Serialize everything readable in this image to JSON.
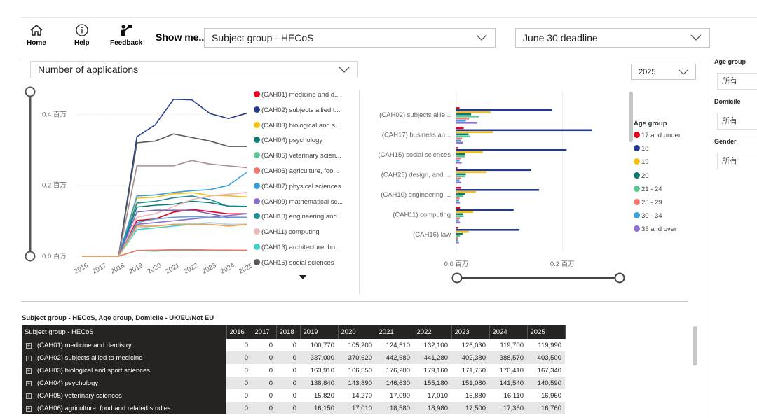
{
  "nav": {
    "home": "Home",
    "help": "Help",
    "feedback": "Feedback",
    "show_me": "Show me...",
    "subject_select": "Subject group - HECoS",
    "deadline_select": "June 30 deadline"
  },
  "measure_select": "Number of applications",
  "year_select": "2025",
  "filters": [
    {
      "title": "Age group",
      "value": "所有"
    },
    {
      "title": "Domicile",
      "value": "所有"
    },
    {
      "title": "Gender",
      "value": "所有"
    }
  ],
  "chart_data": [
    {
      "type": "line",
      "y_tick_labels": [
        "0.0 百万",
        "0.2 百万",
        "0.4 百万"
      ],
      "ylim": [
        0,
        0.47
      ],
      "x": [
        "2016",
        "2017",
        "2018",
        "2019",
        "2020",
        "2021",
        "2022",
        "2023",
        "2024",
        "2025"
      ],
      "series": [
        {
          "name": "(CAH01) medicine and d...",
          "color": "#e6001d",
          "values": [
            0,
            0,
            0,
            0.1008,
            0.1052,
            0.1245,
            0.1321,
            0.126,
            0.1197,
            0.12
          ]
        },
        {
          "name": "(CAH02) subjects allied t...",
          "color": "#243a8f",
          "values": [
            0,
            0,
            0,
            0.337,
            0.3706,
            0.4427,
            0.4413,
            0.4024,
            0.3886,
            0.4035
          ]
        },
        {
          "name": "(CAH03) biological and s...",
          "color": "#f5c00f",
          "values": [
            0,
            0,
            0,
            0.1639,
            0.1666,
            0.1762,
            0.1792,
            0.1718,
            0.1704,
            0.1673
          ]
        },
        {
          "name": "(CAH04) psychology",
          "color": "#0a7a73",
          "values": [
            0,
            0,
            0,
            0.1388,
            0.1439,
            0.1466,
            0.1552,
            0.1511,
            0.1415,
            0.1406
          ]
        },
        {
          "name": "(CAH05) veterinary scien...",
          "color": "#5bc896",
          "values": [
            0,
            0,
            0,
            0.0158,
            0.0143,
            0.0171,
            0.017,
            0.0159,
            0.0161,
            0.017
          ]
        },
        {
          "name": "(CAH06) agriculture, foo...",
          "color": "#f27766",
          "values": [
            0,
            0,
            0,
            0.0162,
            0.017,
            0.0186,
            0.019,
            0.0175,
            0.0174,
            0.0168
          ]
        },
        {
          "name": "(CAH07) physical sciences",
          "color": "#3a9fdb",
          "values": [
            0,
            0,
            0,
            0.17,
            0.173,
            0.18,
            0.185,
            0.188,
            0.2,
            0.237
          ]
        },
        {
          "name": "(CAH09) mathematical sc...",
          "color": "#8b6fd1",
          "values": [
            0,
            0,
            0,
            0.09,
            0.095,
            0.1,
            0.105,
            0.11,
            0.115,
            0.12
          ]
        },
        {
          "name": "(CAH10) engineering and...",
          "color": "#1d8d96",
          "values": [
            0,
            0,
            0,
            0.15,
            0.155,
            0.165,
            0.17,
            0.16,
            0.14,
            0.14
          ]
        },
        {
          "name": "(CAH11) computing",
          "color": "#e8b7b7",
          "values": [
            0,
            0,
            0,
            0.11,
            0.12,
            0.14,
            0.16,
            0.17,
            0.175,
            0.18
          ]
        },
        {
          "name": "(CAH13) architecture, bu...",
          "color": "#48cfc5",
          "values": [
            0,
            0,
            0,
            0.075,
            0.08,
            0.085,
            0.09,
            0.095,
            0.09,
            0.09
          ]
        },
        {
          "name": "(CAH15) social sciences",
          "color": "#555b5c",
          "values": [
            0,
            0,
            0,
            0.32,
            0.325,
            0.345,
            0.335,
            0.325,
            0.31,
            0.31
          ]
        },
        {
          "name": "",
          "color": "#a98c8c",
          "values": [
            0,
            0,
            0,
            0.255,
            0.255,
            0.255,
            0.27,
            0.26,
            0.255,
            0.25
          ]
        },
        {
          "name": "",
          "color": "#7f63c4",
          "values": [
            0,
            0,
            0,
            0.125,
            0.13,
            0.13,
            0.13,
            0.12,
            0.11,
            0.11
          ]
        },
        {
          "name": "",
          "color": "#5ea0d8",
          "values": [
            0,
            0,
            0,
            0.095,
            0.105,
            0.11,
            0.112,
            0.11,
            0.108,
            0.11
          ]
        },
        {
          "name": "",
          "color": "#b7d6ec",
          "values": [
            0,
            0,
            0,
            0.08,
            0.085,
            0.09,
            0.092,
            0.095,
            0.09,
            0.09
          ]
        },
        {
          "name": "",
          "color": "#f4a14f",
          "values": [
            0,
            0,
            0,
            0.085,
            0.085,
            0.09,
            0.09,
            0.09,
            0.085,
            0.09
          ]
        }
      ]
    },
    {
      "type": "bar",
      "orientation": "horizontal",
      "categories": [
        "(CAH02) subjects allie...",
        "(CAH17) business an...",
        "(CAH15) social sciences",
        "(CAH25) design, and ...",
        "(CAH10) engineering ...",
        "(CAH11) computing",
        "(CAH16) law"
      ],
      "x_tick_labels": [
        "0.0 百万",
        "0.2 百万"
      ],
      "xlim": [
        0,
        0.3
      ],
      "legend_title": "Age group",
      "series": [
        {
          "name": "17 and under",
          "color": "#e6001d",
          "values": [
            0.006,
            0.014,
            0.003,
            0.002,
            0.009,
            0.007,
            0.003
          ]
        },
        {
          "name": "18",
          "color": "#243a8f",
          "values": [
            0.181,
            0.255,
            0.208,
            0.141,
            0.156,
            0.108,
            0.119
          ]
        },
        {
          "name": "19",
          "color": "#f5c00f",
          "values": [
            0.065,
            0.069,
            0.05,
            0.057,
            0.037,
            0.032,
            0.023
          ]
        },
        {
          "name": "20",
          "color": "#0a7a73",
          "values": [
            0.028,
            0.023,
            0.017,
            0.018,
            0.017,
            0.013,
            0.012
          ]
        },
        {
          "name": "21 - 24",
          "color": "#5bc896",
          "values": [
            0.043,
            0.026,
            0.016,
            0.016,
            0.013,
            0.014,
            0.007
          ]
        },
        {
          "name": "25 - 29",
          "color": "#f27766",
          "values": [
            0.024,
            0.011,
            0.008,
            0.009,
            0.006,
            0.007,
            0.004
          ]
        },
        {
          "name": "30 - 34",
          "color": "#3a9fdb",
          "values": [
            0.018,
            0.008,
            0.006,
            0.006,
            0.005,
            0.005,
            0.003
          ]
        },
        {
          "name": "35 and over",
          "color": "#8b6fd1",
          "values": [
            0.039,
            0.012,
            0.01,
            0.009,
            0.007,
            0.007,
            0.005
          ]
        }
      ]
    }
  ],
  "table": {
    "title": "Subject group - HECoS, Age group, Domicile - UK/EU/Not EU",
    "columns": [
      "Subject group - HECoS",
      "2016",
      "2017",
      "2018",
      "2019",
      "2020",
      "2021",
      "2022",
      "2023",
      "2024",
      "2025"
    ],
    "rows": [
      {
        "label": "(CAH01) medicine and dentistry",
        "values": [
          "0",
          "0",
          "0",
          "100,770",
          "105,200",
          "124,510",
          "132,100",
          "126,030",
          "119,700",
          "119,990"
        ]
      },
      {
        "label": "(CAH02) subjects allied to medicine",
        "values": [
          "0",
          "0",
          "0",
          "337,000",
          "370,620",
          "442,680",
          "441,280",
          "402,380",
          "388,570",
          "403,500"
        ]
      },
      {
        "label": "(CAH03) biological and sport sciences",
        "values": [
          "0",
          "0",
          "0",
          "163,910",
          "166,550",
          "176,200",
          "179,160",
          "171,750",
          "170,410",
          "167,340"
        ]
      },
      {
        "label": "(CAH04) psychology",
        "values": [
          "0",
          "0",
          "0",
          "138,840",
          "143,890",
          "146,630",
          "155,180",
          "151,080",
          "141,540",
          "140,590"
        ]
      },
      {
        "label": "(CAH05) veterinary sciences",
        "values": [
          "0",
          "0",
          "0",
          "15,820",
          "14,270",
          "17,090",
          "17,010",
          "15,880",
          "16,110",
          "16,960"
        ]
      },
      {
        "label": "(CAH06) agriculture, food and related studies",
        "values": [
          "0",
          "0",
          "0",
          "16,150",
          "17,010",
          "18,580",
          "18,980",
          "17,500",
          "17,360",
          "16,760"
        ]
      }
    ]
  }
}
